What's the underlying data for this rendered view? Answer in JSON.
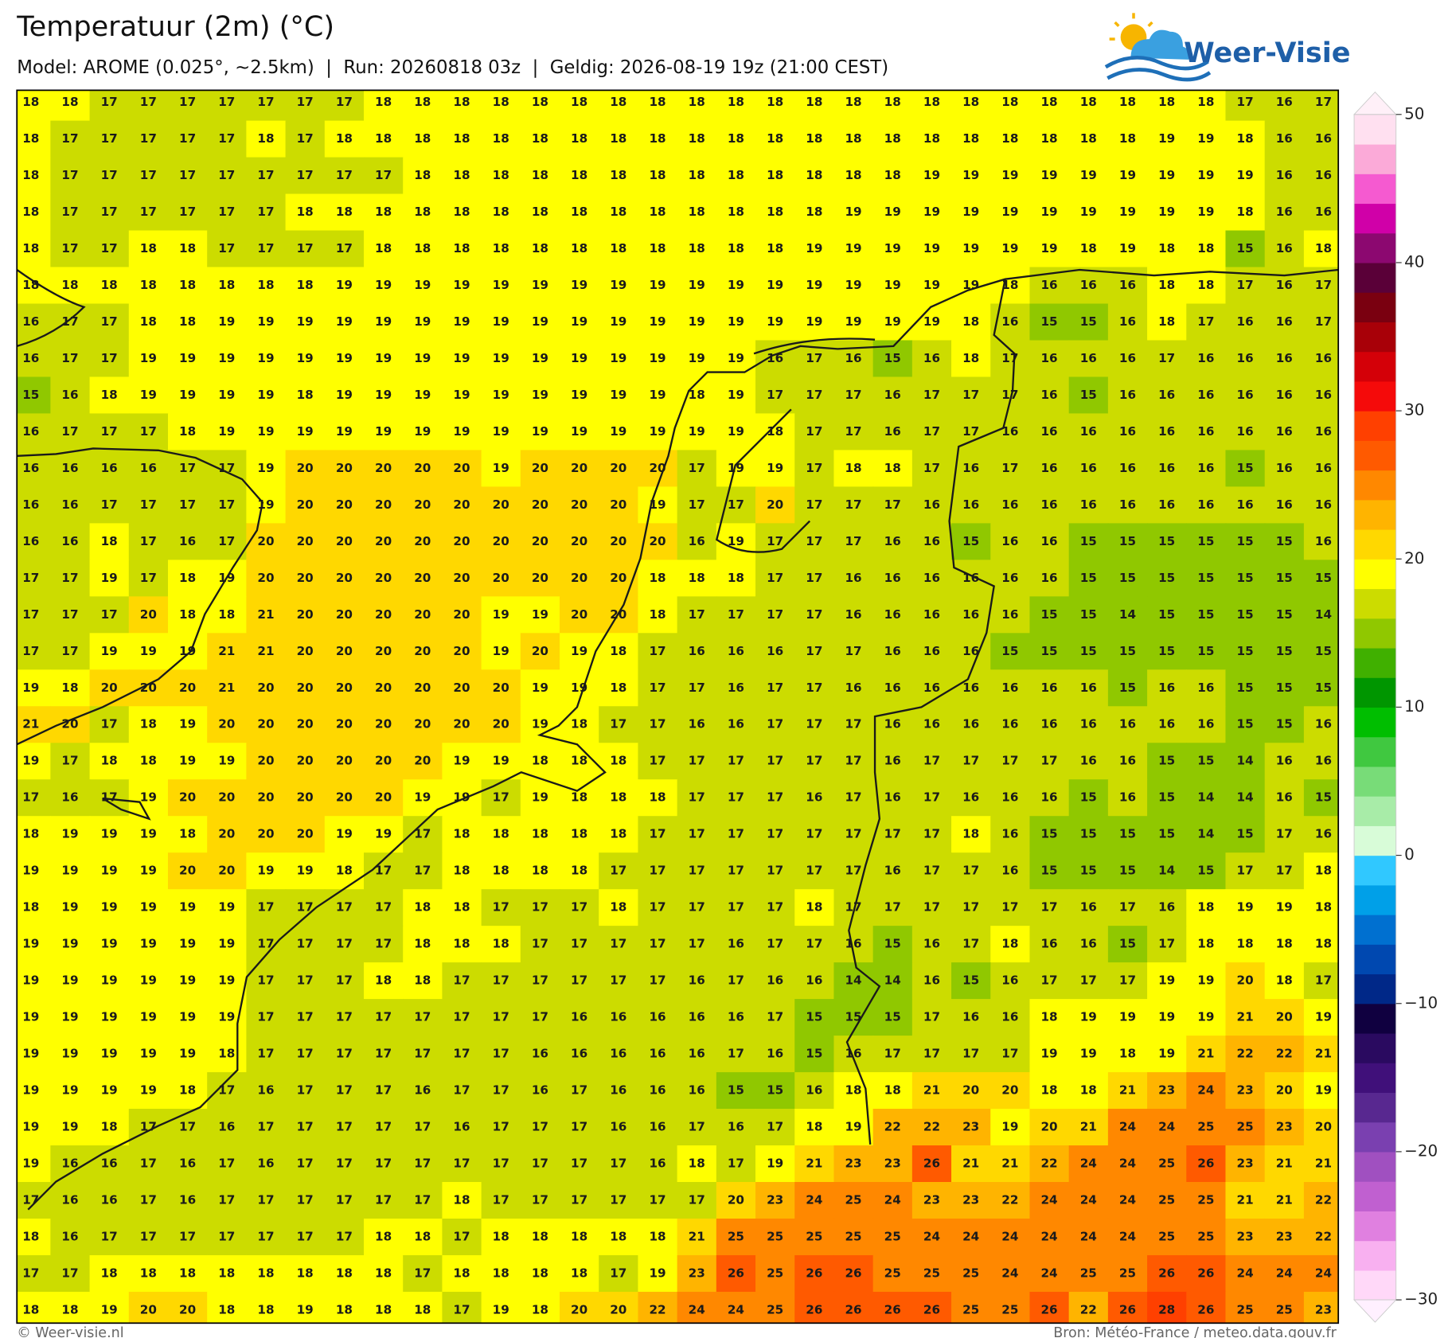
{
  "chart_data": {
    "type": "grid-map",
    "title": "Temperatuur (2m) (°C)",
    "subtitle": "Model: AROME (0.025°, ~2.5km)  |  Run: 20260818 03z  |  Geldig: 2026-08-19 19z (21:00 CEST)",
    "values": [
      [
        18,
        18,
        17,
        17,
        17,
        17,
        17,
        17,
        17,
        18,
        18,
        18,
        18,
        18,
        18,
        18,
        18,
        18,
        18,
        18,
        18,
        18,
        18,
        18,
        18,
        18,
        18,
        18,
        18,
        18,
        18,
        17,
        16,
        17
      ],
      [
        18,
        17,
        17,
        17,
        17,
        17,
        18,
        17,
        18,
        18,
        18,
        18,
        18,
        18,
        18,
        18,
        18,
        18,
        18,
        18,
        18,
        18,
        18,
        18,
        18,
        18,
        18,
        18,
        18,
        19,
        19,
        18,
        16,
        16
      ],
      [
        18,
        17,
        17,
        17,
        17,
        17,
        17,
        17,
        17,
        17,
        18,
        18,
        18,
        18,
        18,
        18,
        18,
        18,
        18,
        18,
        18,
        18,
        18,
        19,
        19,
        19,
        19,
        19,
        19,
        19,
        19,
        19,
        16,
        16
      ],
      [
        18,
        17,
        17,
        17,
        17,
        17,
        17,
        18,
        18,
        18,
        18,
        18,
        18,
        18,
        18,
        18,
        18,
        18,
        18,
        18,
        18,
        19,
        19,
        19,
        19,
        19,
        19,
        19,
        19,
        19,
        19,
        18,
        16,
        16
      ],
      [
        18,
        17,
        17,
        18,
        18,
        17,
        17,
        17,
        17,
        18,
        18,
        18,
        18,
        18,
        18,
        18,
        18,
        18,
        18,
        18,
        19,
        19,
        19,
        19,
        19,
        19,
        19,
        18,
        19,
        18,
        18,
        15,
        16,
        18
      ],
      [
        18,
        18,
        18,
        18,
        18,
        18,
        18,
        18,
        19,
        19,
        19,
        19,
        19,
        19,
        19,
        19,
        19,
        19,
        19,
        19,
        19,
        19,
        19,
        19,
        19,
        18,
        16,
        16,
        16,
        18,
        18,
        17,
        16,
        17
      ],
      [
        16,
        17,
        17,
        18,
        18,
        19,
        19,
        19,
        19,
        19,
        19,
        19,
        19,
        19,
        19,
        19,
        19,
        19,
        19,
        19,
        19,
        19,
        19,
        19,
        18,
        16,
        15,
        15,
        16,
        18,
        17,
        16,
        16,
        17
      ],
      [
        16,
        17,
        17,
        19,
        19,
        19,
        19,
        19,
        19,
        19,
        19,
        19,
        19,
        19,
        19,
        19,
        19,
        19,
        19,
        16,
        17,
        16,
        15,
        16,
        18,
        17,
        16,
        16,
        16,
        17,
        16,
        16,
        16,
        16
      ],
      [
        15,
        16,
        18,
        19,
        19,
        19,
        19,
        18,
        19,
        19,
        19,
        19,
        19,
        19,
        19,
        19,
        19,
        18,
        19,
        17,
        17,
        17,
        16,
        17,
        17,
        17,
        16,
        15,
        16,
        16,
        16,
        16,
        16,
        16
      ],
      [
        16,
        17,
        17,
        17,
        18,
        19,
        19,
        19,
        19,
        19,
        19,
        19,
        19,
        19,
        19,
        19,
        19,
        19,
        19,
        18,
        17,
        17,
        16,
        17,
        17,
        16,
        16,
        16,
        16,
        16,
        16,
        16,
        16,
        16
      ],
      [
        16,
        16,
        16,
        16,
        17,
        17,
        19,
        20,
        20,
        20,
        20,
        20,
        19,
        20,
        20,
        20,
        20,
        17,
        19,
        19,
        17,
        18,
        18,
        17,
        16,
        17,
        16,
        16,
        16,
        16,
        16,
        15,
        16,
        16
      ],
      [
        16,
        16,
        17,
        17,
        17,
        17,
        19,
        20,
        20,
        20,
        20,
        20,
        20,
        20,
        20,
        20,
        19,
        17,
        17,
        20,
        17,
        17,
        17,
        16,
        16,
        16,
        16,
        16,
        16,
        16,
        16,
        16,
        16,
        16
      ],
      [
        16,
        16,
        18,
        17,
        16,
        17,
        20,
        20,
        20,
        20,
        20,
        20,
        20,
        20,
        20,
        20,
        20,
        16,
        19,
        17,
        17,
        17,
        16,
        16,
        15,
        16,
        16,
        15,
        15,
        15,
        15,
        15,
        15,
        16
      ],
      [
        17,
        17,
        19,
        17,
        18,
        19,
        20,
        20,
        20,
        20,
        20,
        20,
        20,
        20,
        20,
        20,
        18,
        18,
        18,
        17,
        17,
        16,
        16,
        16,
        16,
        16,
        16,
        15,
        15,
        15,
        15,
        15,
        15,
        15
      ],
      [
        17,
        17,
        17,
        20,
        18,
        18,
        21,
        20,
        20,
        20,
        20,
        20,
        19,
        19,
        20,
        20,
        18,
        17,
        17,
        17,
        17,
        16,
        16,
        16,
        16,
        16,
        15,
        15,
        14,
        15,
        15,
        15,
        15,
        14
      ],
      [
        17,
        17,
        19,
        19,
        19,
        21,
        21,
        20,
        20,
        20,
        20,
        20,
        19,
        20,
        19,
        18,
        17,
        16,
        16,
        16,
        17,
        17,
        16,
        16,
        16,
        15,
        15,
        15,
        15,
        15,
        15,
        15,
        15,
        15
      ],
      [
        19,
        18,
        20,
        20,
        20,
        21,
        20,
        20,
        20,
        20,
        20,
        20,
        20,
        19,
        19,
        18,
        17,
        17,
        16,
        17,
        17,
        16,
        16,
        16,
        16,
        16,
        16,
        16,
        15,
        16,
        16,
        15,
        15,
        15
      ],
      [
        21,
        20,
        17,
        18,
        19,
        20,
        20,
        20,
        20,
        20,
        20,
        20,
        20,
        19,
        18,
        17,
        17,
        16,
        16,
        17,
        17,
        17,
        16,
        16,
        16,
        16,
        16,
        16,
        16,
        16,
        16,
        15,
        15,
        16
      ],
      [
        19,
        17,
        18,
        18,
        19,
        19,
        20,
        20,
        20,
        20,
        20,
        19,
        19,
        18,
        18,
        18,
        17,
        17,
        17,
        17,
        17,
        17,
        16,
        17,
        17,
        17,
        17,
        16,
        16,
        15,
        15,
        14,
        16,
        16
      ],
      [
        17,
        16,
        17,
        19,
        20,
        20,
        20,
        20,
        20,
        20,
        19,
        19,
        17,
        19,
        18,
        18,
        18,
        17,
        17,
        17,
        16,
        17,
        16,
        17,
        16,
        16,
        16,
        15,
        16,
        15,
        14,
        14,
        16,
        15
      ],
      [
        18,
        19,
        19,
        19,
        18,
        20,
        20,
        20,
        19,
        19,
        17,
        18,
        18,
        18,
        18,
        18,
        17,
        17,
        17,
        17,
        17,
        17,
        17,
        17,
        18,
        16,
        15,
        15,
        15,
        15,
        14,
        15,
        17,
        16
      ],
      [
        19,
        19,
        19,
        19,
        20,
        20,
        19,
        19,
        18,
        17,
        17,
        18,
        18,
        18,
        18,
        17,
        17,
        17,
        17,
        17,
        17,
        17,
        16,
        17,
        17,
        16,
        15,
        15,
        15,
        14,
        15,
        17,
        17,
        18
      ],
      [
        18,
        19,
        19,
        19,
        19,
        19,
        17,
        17,
        17,
        17,
        18,
        18,
        17,
        17,
        17,
        18,
        17,
        17,
        17,
        17,
        18,
        17,
        17,
        17,
        17,
        17,
        17,
        16,
        17,
        16,
        18,
        19,
        19,
        18
      ],
      [
        19,
        19,
        19,
        19,
        19,
        19,
        17,
        17,
        17,
        17,
        18,
        18,
        18,
        17,
        17,
        17,
        17,
        17,
        16,
        17,
        17,
        16,
        15,
        16,
        17,
        18,
        16,
        16,
        15,
        17,
        18,
        18,
        18,
        18
      ],
      [
        19,
        19,
        19,
        19,
        19,
        19,
        17,
        17,
        17,
        18,
        18,
        17,
        17,
        17,
        17,
        17,
        17,
        16,
        17,
        16,
        16,
        14,
        14,
        16,
        15,
        16,
        17,
        17,
        17,
        19,
        19,
        20,
        18,
        17
      ],
      [
        19,
        19,
        19,
        19,
        19,
        19,
        17,
        17,
        17,
        17,
        17,
        17,
        17,
        17,
        16,
        16,
        16,
        16,
        16,
        17,
        15,
        15,
        15,
        17,
        16,
        16,
        18,
        19,
        19,
        19,
        19,
        21,
        20,
        19
      ],
      [
        19,
        19,
        19,
        19,
        19,
        18,
        17,
        17,
        17,
        17,
        17,
        17,
        17,
        16,
        16,
        16,
        16,
        16,
        17,
        16,
        15,
        16,
        17,
        17,
        17,
        17,
        19,
        19,
        18,
        19,
        21,
        22,
        22,
        21
      ],
      [
        19,
        19,
        19,
        19,
        18,
        17,
        16,
        17,
        17,
        17,
        16,
        17,
        17,
        16,
        17,
        16,
        16,
        16,
        15,
        15,
        16,
        18,
        18,
        21,
        20,
        20,
        18,
        18,
        21,
        23,
        24,
        23,
        20,
        19
      ],
      [
        19,
        19,
        18,
        17,
        17,
        16,
        17,
        17,
        17,
        17,
        17,
        16,
        17,
        17,
        17,
        16,
        16,
        17,
        16,
        17,
        18,
        19,
        22,
        22,
        23,
        19,
        20,
        21,
        24,
        24,
        25,
        25,
        23,
        20
      ],
      [
        19,
        16,
        16,
        17,
        16,
        17,
        16,
        17,
        17,
        17,
        17,
        17,
        17,
        17,
        17,
        17,
        16,
        18,
        17,
        19,
        21,
        23,
        23,
        26,
        21,
        21,
        22,
        24,
        24,
        25,
        26,
        23,
        21,
        21
      ],
      [
        17,
        16,
        16,
        17,
        16,
        17,
        17,
        17,
        17,
        17,
        17,
        18,
        17,
        17,
        17,
        17,
        17,
        17,
        20,
        23,
        24,
        25,
        24,
        23,
        23,
        22,
        24,
        24,
        24,
        25,
        25,
        21,
        21,
        22
      ],
      [
        18,
        16,
        17,
        17,
        17,
        17,
        17,
        17,
        17,
        18,
        18,
        17,
        18,
        18,
        18,
        18,
        18,
        21,
        25,
        25,
        25,
        25,
        25,
        24,
        24,
        24,
        24,
        24,
        24,
        25,
        25,
        23,
        23,
        22
      ],
      [
        17,
        17,
        18,
        18,
        18,
        18,
        18,
        18,
        18,
        18,
        17,
        18,
        18,
        18,
        18,
        17,
        19,
        23,
        26,
        25,
        26,
        26,
        25,
        25,
        25,
        24,
        24,
        25,
        25,
        26,
        26,
        24,
        24,
        24
      ],
      [
        18,
        18,
        19,
        20,
        20,
        18,
        18,
        19,
        18,
        18,
        18,
        17,
        19,
        18,
        20,
        20,
        22,
        24,
        24,
        25,
        26,
        26,
        26,
        26,
        25,
        25,
        26,
        22,
        26,
        28,
        26,
        25,
        25,
        23
      ]
    ],
    "colorbar": {
      "lim": [
        -30,
        50
      ],
      "ticks": [
        {
          "value": -30,
          "label": "−30"
        },
        {
          "value": -20,
          "label": "−20"
        },
        {
          "value": -10,
          "label": "−10"
        },
        0,
        10,
        20,
        30,
        40,
        50
      ],
      "colors": [
        "#ffd8f8",
        "#f8b0f0",
        "#e080e0",
        "#c060d0",
        "#a050c0",
        "#7a40b0",
        "#582890",
        "#40107a",
        "#2a0a60",
        "#100040",
        "#002888",
        "#0048b0",
        "#0070d0",
        "#00a0e8",
        "#30c8ff",
        "#d8fcd8",
        "#a8eca8",
        "#78dc78",
        "#40c840",
        "#00be00",
        "#009600",
        "#40b000",
        "#90c800",
        "#ccdc00",
        "#ffff00",
        "#ffd800",
        "#ffb400",
        "#ff8800",
        "#ff5a00",
        "#ff4000",
        "#f50a0a",
        "#d40008",
        "#a80008",
        "#7a0010",
        "#5a0038",
        "#8c0870",
        "#d000a8",
        "#f55ad0",
        "#fbaad8",
        "#ffe0f0"
      ],
      "extend_colors": [
        "#fff0ff",
        "#fff0f8"
      ]
    }
  },
  "logo": "Weer-Visie",
  "footer": {
    "left": "© Weer-visie.nl",
    "right": "Bron: Météo-France / meteo.data.gouv.fr"
  }
}
